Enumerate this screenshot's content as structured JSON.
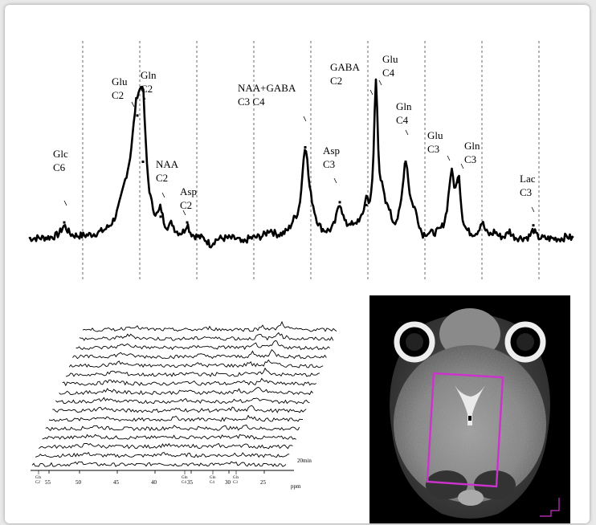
{
  "chart_data": [
    {
      "type": "line",
      "peaks": [
        {
          "id": "glc-c6",
          "lines": [
            "Glc",
            "C6"
          ],
          "height": 0.08
        },
        {
          "id": "glu-c2",
          "lines": [
            "Glu",
            "C2"
          ],
          "height": 0.82
        },
        {
          "id": "gln-c2",
          "lines": [
            "Gln",
            "C2"
          ],
          "height": 0.5
        },
        {
          "id": "naa-c2",
          "lines": [
            "NAA",
            "C2"
          ],
          "height": 0.12
        },
        {
          "id": "asp-c2",
          "lines": [
            "Asp",
            "C2"
          ],
          "height": 0.08
        },
        {
          "id": "naa-gaba-c3c4",
          "lines": [
            "NAA+GABA",
            "C3     C4"
          ],
          "height": 0.6
        },
        {
          "id": "asp-c3",
          "lines": [
            "Asp",
            "C3"
          ],
          "height": 0.22
        },
        {
          "id": "gaba-c2",
          "lines": [
            "GABA",
            "C2"
          ],
          "height": 0.2
        },
        {
          "id": "glu-c4",
          "lines": [
            "Glu",
            "C4"
          ],
          "height": 1.0
        },
        {
          "id": "gln-c4",
          "lines": [
            "Gln",
            "C4"
          ],
          "height": 0.5
        },
        {
          "id": "glu-c3",
          "lines": [
            "Glu",
            "C3"
          ],
          "height": 0.42
        },
        {
          "id": "gln-c3",
          "lines": [
            "Gln",
            "C3"
          ],
          "height": 0.36
        },
        {
          "id": "lac-c3",
          "lines": [
            "Lac",
            "C3"
          ],
          "height": 0.06
        }
      ],
      "grid": "vertical-dashed"
    },
    {
      "type": "line",
      "traces": 16,
      "time_label": "20min",
      "x_ticks": [
        "55",
        "50",
        "45",
        "40",
        "35",
        "30",
        "25"
      ],
      "x_label": "ppm",
      "assignment_ticks": [
        {
          "lines": [
            "Glx",
            "C2"
          ]
        },
        {
          "lines": [
            "Gln",
            "C4"
          ]
        },
        {
          "lines": [
            "Gln",
            "C4"
          ]
        },
        {
          "lines": [
            "Glx",
            "C3"
          ]
        }
      ]
    }
  ],
  "image": {
    "description_color": "#cc33cc",
    "voxel_color": "#cc33cc"
  }
}
